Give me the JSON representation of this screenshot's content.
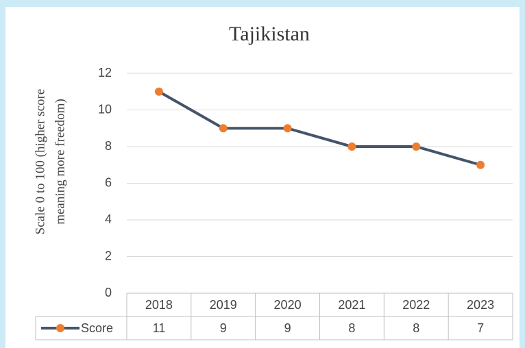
{
  "chart_data": {
    "type": "line",
    "title": "Tajikistan",
    "ylabel": [
      "Scale 0 to 100 (higher score",
      "meaning more freedom)"
    ],
    "categories": [
      "2018",
      "2019",
      "2020",
      "2021",
      "2022",
      "2023"
    ],
    "series": [
      {
        "name": "Score",
        "color": "#44546a",
        "marker_color": "#ed7d31",
        "values": [
          11,
          9,
          9,
          8,
          8,
          7
        ]
      }
    ],
    "ylim": [
      0,
      12
    ],
    "yticks": [
      0,
      2,
      4,
      6,
      8,
      10,
      12
    ],
    "grid": true,
    "legend": "data-table"
  }
}
